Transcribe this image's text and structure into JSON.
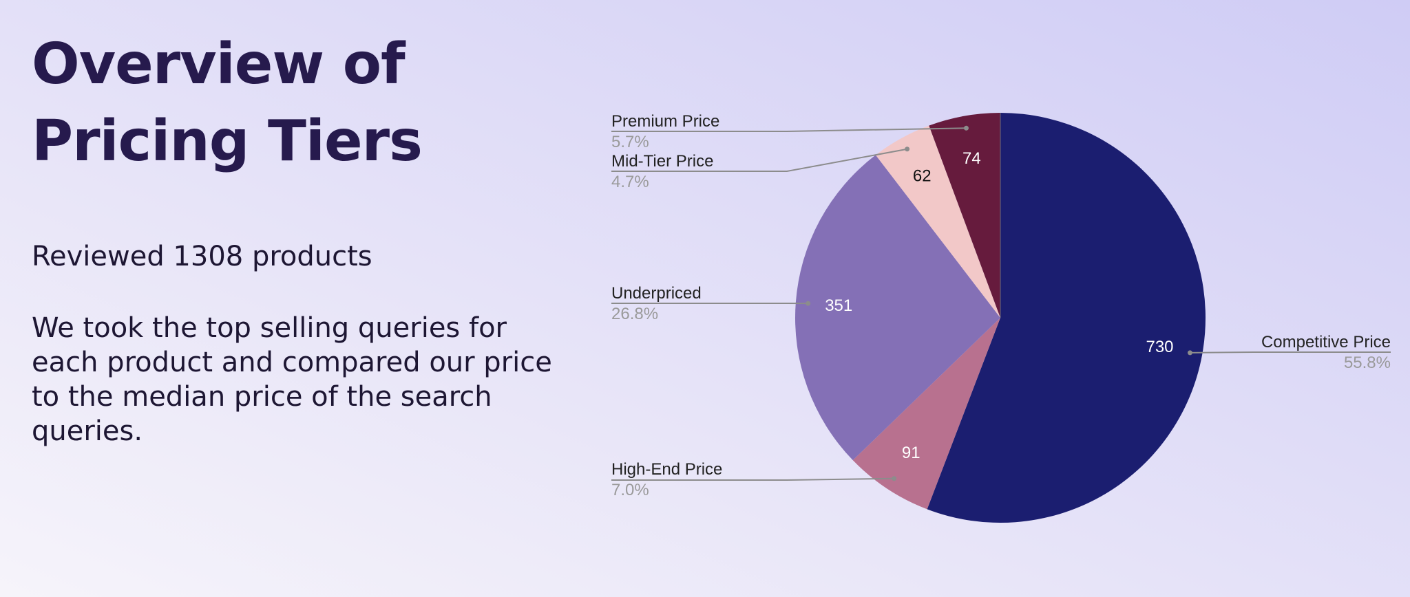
{
  "slide": {
    "title": "Overview of Pricing Tiers",
    "summary": "Reviewed 1308 products",
    "description": "We took the top selling queries for each product and compared our price to the median price of the search queries."
  },
  "chart_data": {
    "type": "pie",
    "title": "",
    "slices": [
      {
        "label": "Competitive Price",
        "value": 730,
        "percent": "55.8%",
        "color": "#1b1e70",
        "value_color": "#ffffff"
      },
      {
        "label": "High-End Price",
        "value": 91,
        "percent": "7.0%",
        "color": "#b8718f",
        "value_color": "#ffffff"
      },
      {
        "label": "Underpriced",
        "value": 351,
        "percent": "26.8%",
        "color": "#8470b6",
        "value_color": "#ffffff"
      },
      {
        "label": "Mid-Tier Price",
        "value": 62,
        "percent": "4.7%",
        "color": "#f2c8c8",
        "value_color": "#111111"
      },
      {
        "label": "Premium Price",
        "value": 74,
        "percent": "5.7%",
        "color": "#661b3d",
        "value_color": "#ffffff"
      }
    ],
    "start_angle": "12 o'clock",
    "direction": "clockwise",
    "legend": "none (callout labels)"
  }
}
